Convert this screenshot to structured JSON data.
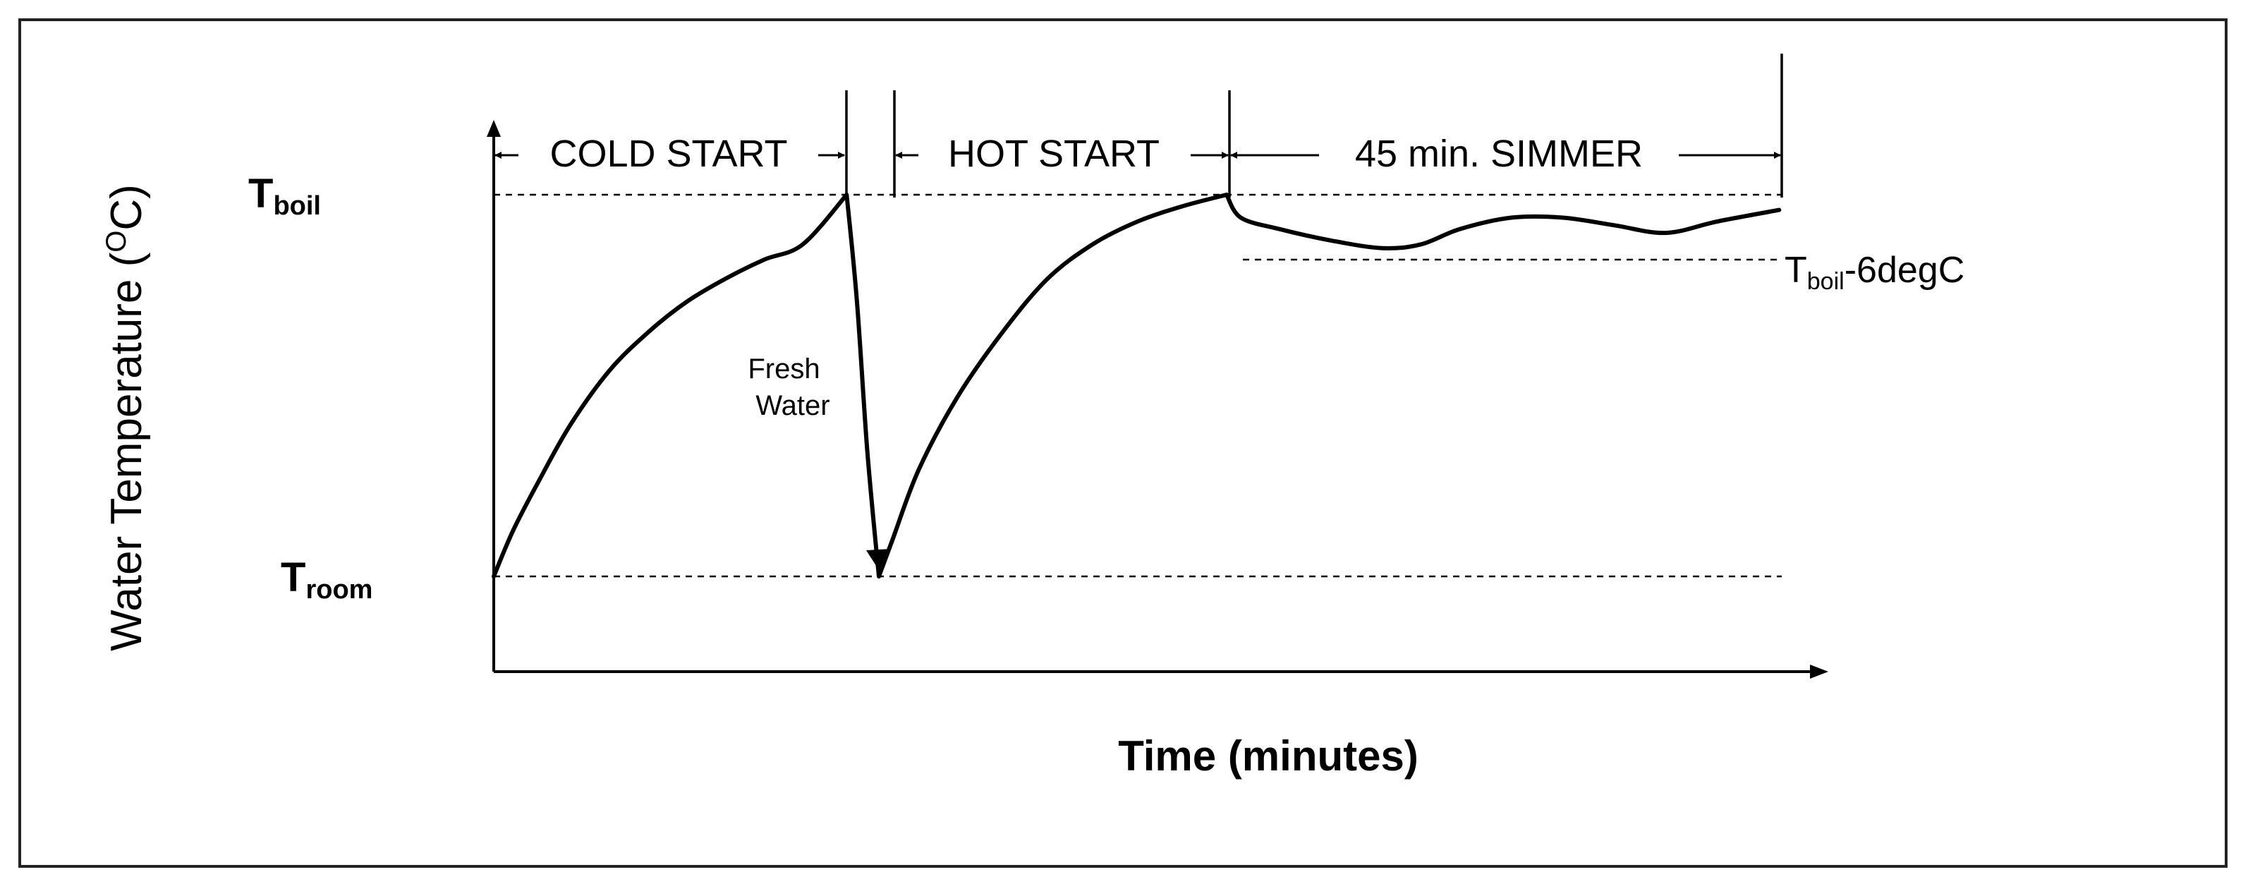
{
  "chart_data": {
    "type": "line",
    "title": "",
    "xlabel": "Time (minutes)",
    "ylabel": {
      "main": "Water Temperature (",
      "superscript": "O",
      "tail": "C)"
    },
    "y_levels": {
      "boil": {
        "base": "T",
        "sub": "boil"
      },
      "room": {
        "base": "T",
        "sub": "room"
      },
      "simmer_threshold": {
        "base": "T",
        "sub": "boil",
        "suffix": "-6degC"
      }
    },
    "phases": [
      "COLD START",
      "HOT START",
      "45 min. SIMMER"
    ],
    "annotation": [
      "Fresh",
      "Water"
    ],
    "axis_ticks_shown": false,
    "grid": false,
    "x_range": [
      0,
      100
    ],
    "y_range": [
      0,
      100
    ],
    "reference_levels": {
      "room": 0,
      "boil": 100,
      "boil_minus_6": 83
    },
    "phase_boundaries": [
      0,
      27.4,
      31.4,
      56.9,
      99.8
    ],
    "series": [
      {
        "points": [
          [
            0.0,
            0
          ],
          [
            1.5,
            12
          ],
          [
            3.5,
            25
          ],
          [
            6,
            40
          ],
          [
            9,
            54
          ],
          [
            12,
            64
          ],
          [
            15,
            72
          ],
          [
            18,
            78
          ],
          [
            21,
            83
          ],
          [
            24,
            87
          ],
          [
            27.4,
            100
          ],
          [
            28.2,
            72
          ],
          [
            29,
            33
          ],
          [
            29.9,
            0
          ],
          [
            31,
            10
          ],
          [
            33,
            28
          ],
          [
            36,
            47
          ],
          [
            39.5,
            64
          ],
          [
            43,
            78
          ],
          [
            46.5,
            87
          ],
          [
            50,
            93
          ],
          [
            53.5,
            97
          ],
          [
            56.9,
            100
          ],
          [
            58,
            94
          ],
          [
            61,
            91
          ],
          [
            65,
            88
          ],
          [
            69,
            86
          ],
          [
            72,
            87
          ],
          [
            75,
            91
          ],
          [
            79,
            94
          ],
          [
            83,
            94
          ],
          [
            87,
            92
          ],
          [
            91,
            90
          ],
          [
            95,
            93
          ],
          [
            99.8,
            96
          ]
        ]
      }
    ]
  }
}
